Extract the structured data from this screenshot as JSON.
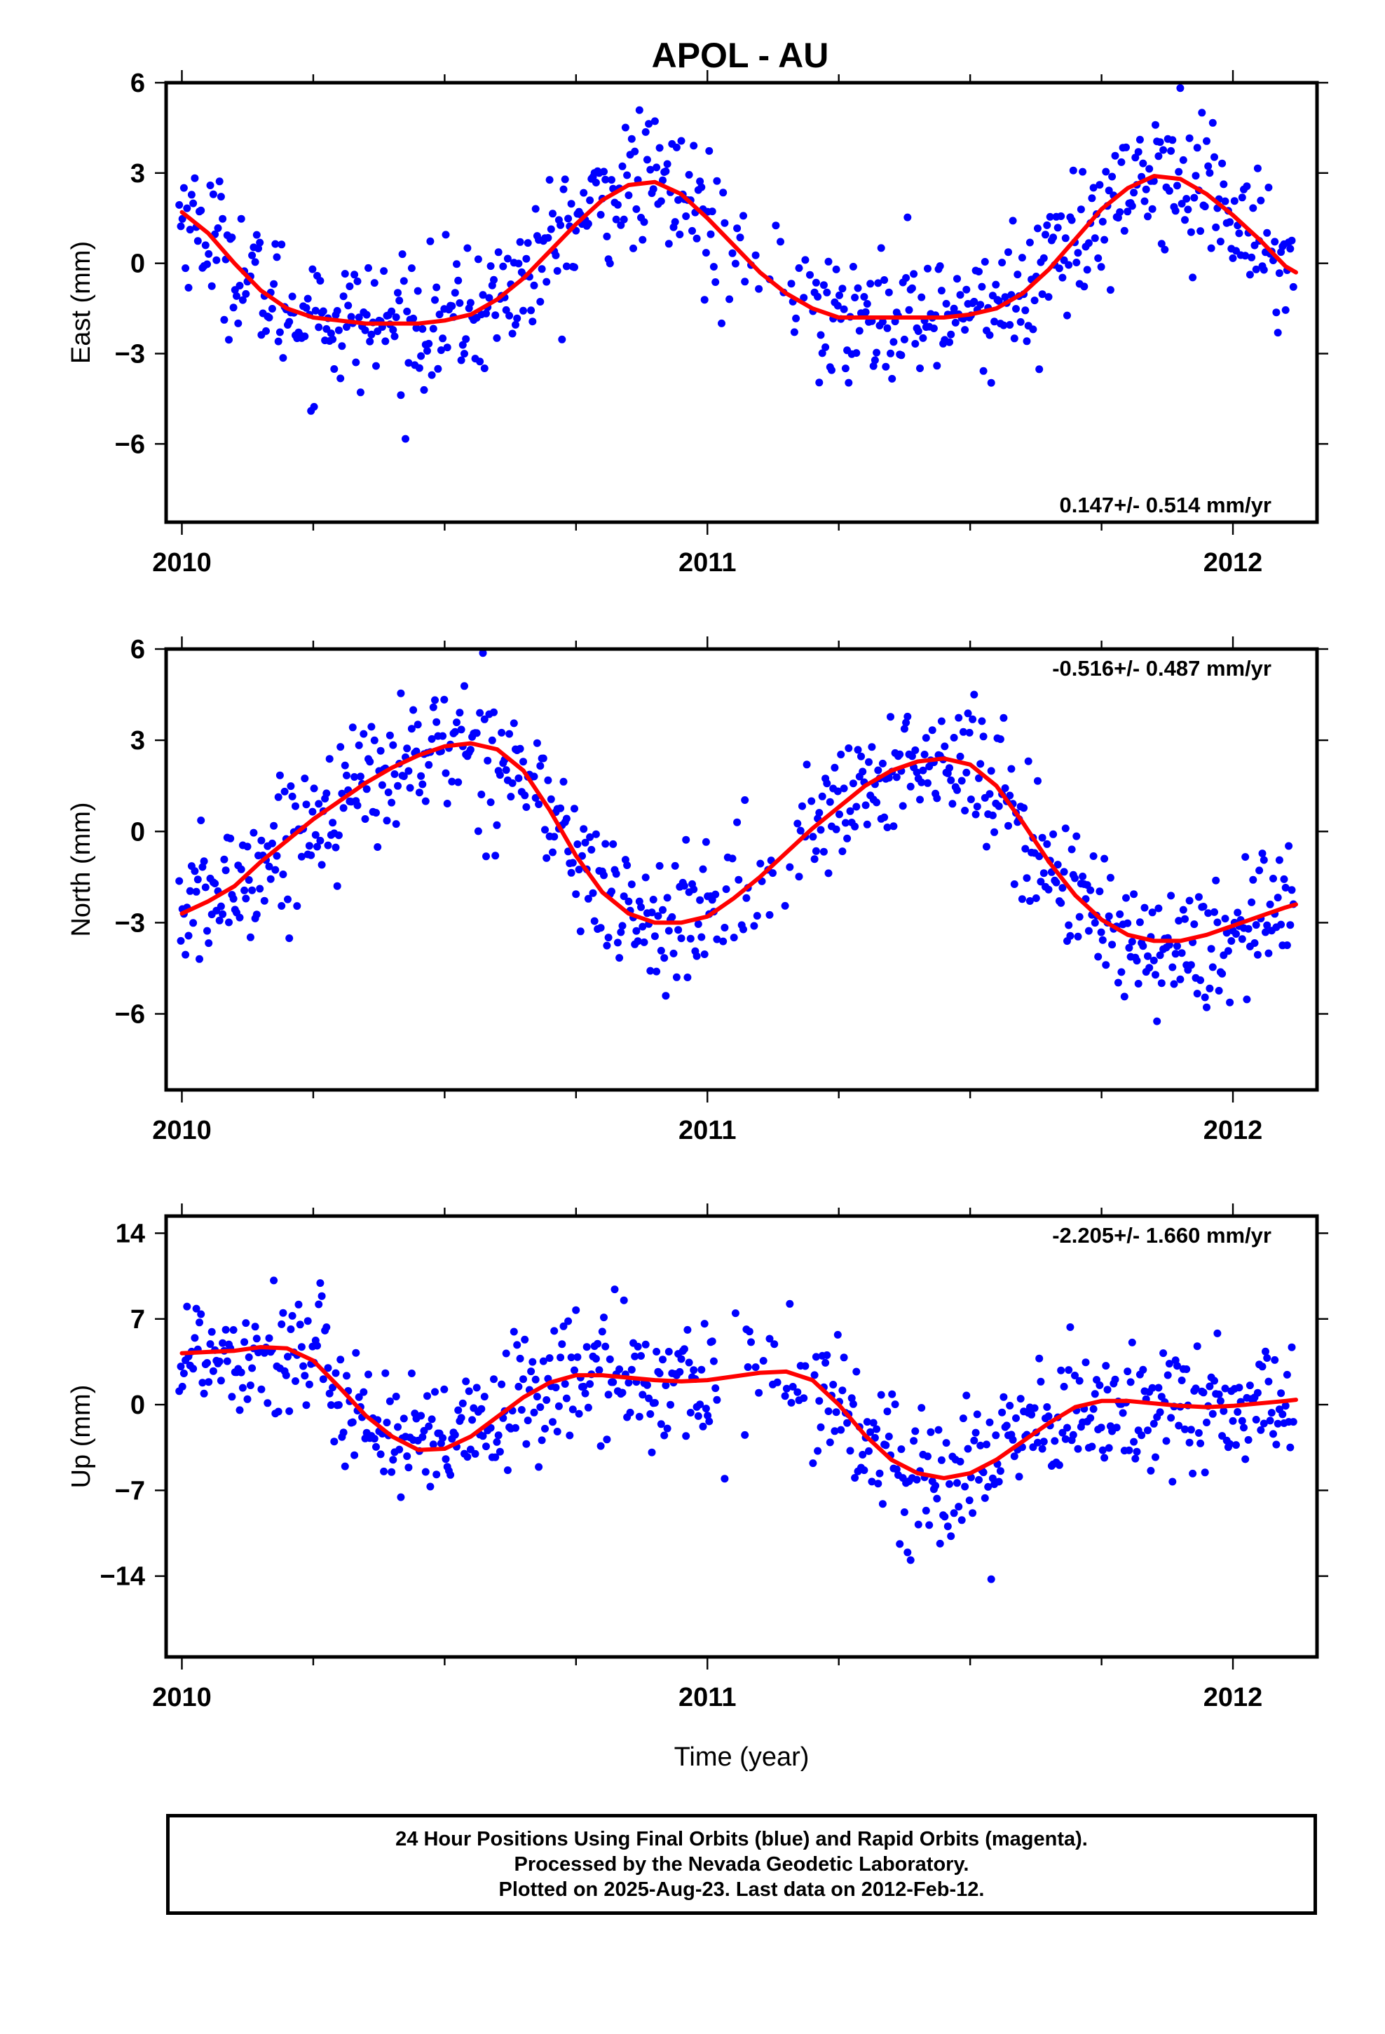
{
  "title": "APOL - AU",
  "footer": {
    "line1": "24 Hour Positions Using Final Orbits (blue) and Rapid Orbits (magenta).",
    "line2": "Processed by the Nevada Geodetic Laboratory.",
    "line3": "Plotted on 2025-Aug-23. Last data on 2012-Feb-12."
  },
  "colors": {
    "final_orbits": "#0000ff",
    "fit_curve": "#ff0000",
    "frame": "#000000"
  },
  "chart_data": [
    {
      "type": "scatter",
      "component": "east",
      "ylabel": "East (mm)",
      "xlabel": "",
      "xlim": [
        2009.97,
        2012.16
      ],
      "ylim": [
        -8.6,
        6.0
      ],
      "x_ticks": [
        2010,
        2011,
        2012
      ],
      "y_ticks": [
        -6,
        -3,
        0,
        3,
        6
      ],
      "rate_label": "0.147+/- 0.514 mm/yr",
      "rate_position": "bottom-right",
      "fit_curve": {
        "x": [
          2010.0,
          2010.05,
          2010.1,
          2010.15,
          2010.2,
          2010.25,
          2010.3,
          2010.35,
          2010.4,
          2010.45,
          2010.5,
          2010.55,
          2010.6,
          2010.65,
          2010.7,
          2010.75,
          2010.8,
          2010.85,
          2010.9,
          2010.95,
          2011.0,
          2011.05,
          2011.1,
          2011.15,
          2011.2,
          2011.25,
          2011.3,
          2011.35,
          2011.4,
          2011.45,
          2011.5,
          2011.55,
          2011.6,
          2011.65,
          2011.7,
          2011.75,
          2011.8,
          2011.85,
          2011.9,
          2011.95,
          2012.0,
          2012.05,
          2012.1,
          2012.12
        ],
        "y": [
          1.7,
          1.0,
          0.0,
          -0.9,
          -1.5,
          -1.8,
          -1.9,
          -2.0,
          -2.0,
          -2.0,
          -1.9,
          -1.7,
          -1.2,
          -0.5,
          0.4,
          1.3,
          2.1,
          2.6,
          2.7,
          2.3,
          1.5,
          0.6,
          -0.3,
          -1.0,
          -1.5,
          -1.8,
          -1.8,
          -1.8,
          -1.8,
          -1.8,
          -1.7,
          -1.5,
          -1.0,
          -0.2,
          0.8,
          1.8,
          2.5,
          2.9,
          2.8,
          2.3,
          1.6,
          0.8,
          -0.1,
          -0.3
        ]
      }
    },
    {
      "type": "scatter",
      "component": "north",
      "ylabel": "North (mm)",
      "xlabel": "",
      "xlim": [
        2009.97,
        2012.16
      ],
      "ylim": [
        -8.5,
        6.0
      ],
      "x_ticks": [
        2010,
        2011,
        2012
      ],
      "y_ticks": [
        -6,
        -3,
        0,
        3,
        6
      ],
      "rate_label": "-0.516+/- 0.487 mm/yr",
      "rate_position": "top-right",
      "fit_curve": {
        "x": [
          2010.0,
          2010.05,
          2010.1,
          2010.15,
          2010.2,
          2010.25,
          2010.3,
          2010.35,
          2010.4,
          2010.45,
          2010.5,
          2010.55,
          2010.6,
          2010.65,
          2010.7,
          2010.75,
          2010.8,
          2010.85,
          2010.9,
          2010.95,
          2011.0,
          2011.05,
          2011.1,
          2011.15,
          2011.2,
          2011.25,
          2011.3,
          2011.35,
          2011.4,
          2011.45,
          2011.5,
          2011.55,
          2011.6,
          2011.65,
          2011.7,
          2011.75,
          2011.8,
          2011.85,
          2011.9,
          2011.95,
          2012.0,
          2012.05,
          2012.1,
          2012.12
        ],
        "y": [
          -2.7,
          -2.3,
          -1.8,
          -1.0,
          -0.3,
          0.4,
          1.0,
          1.6,
          2.1,
          2.5,
          2.8,
          2.9,
          2.7,
          2.0,
          0.7,
          -0.8,
          -2.0,
          -2.7,
          -3.0,
          -3.0,
          -2.8,
          -2.2,
          -1.5,
          -0.7,
          0.1,
          0.8,
          1.5,
          2.0,
          2.3,
          2.4,
          2.2,
          1.5,
          0.3,
          -1.0,
          -2.1,
          -2.9,
          -3.4,
          -3.6,
          -3.6,
          -3.4,
          -3.1,
          -2.8,
          -2.5,
          -2.4
        ]
      }
    },
    {
      "type": "scatter",
      "component": "up",
      "ylabel": "Up (mm)",
      "xlabel": "Time (year)",
      "xlim": [
        2009.97,
        2012.16
      ],
      "ylim": [
        -20.6,
        15.4
      ],
      "x_ticks": [
        2010,
        2011,
        2012
      ],
      "y_ticks": [
        -14,
        -7,
        0,
        7,
        14
      ],
      "rate_label": "-2.205+/- 1.660 mm/yr",
      "rate_position": "top-right",
      "fit_curve": {
        "x": [
          2010.0,
          2010.05,
          2010.1,
          2010.15,
          2010.2,
          2010.25,
          2010.3,
          2010.35,
          2010.4,
          2010.45,
          2010.5,
          2010.55,
          2010.6,
          2010.65,
          2010.7,
          2010.75,
          2010.8,
          2010.85,
          2010.9,
          2010.95,
          2011.0,
          2011.05,
          2011.1,
          2011.15,
          2011.2,
          2011.25,
          2011.3,
          2011.35,
          2011.4,
          2011.45,
          2011.5,
          2011.55,
          2011.6,
          2011.65,
          2011.7,
          2011.75,
          2011.8,
          2011.85,
          2011.9,
          2011.95,
          2012.0,
          2012.05,
          2012.1,
          2012.12
        ],
        "y": [
          4.2,
          4.3,
          4.4,
          4.7,
          4.6,
          3.6,
          1.4,
          -0.9,
          -2.6,
          -3.7,
          -3.6,
          -2.6,
          -1.0,
          0.6,
          1.8,
          2.4,
          2.4,
          2.2,
          2.0,
          1.9,
          2.0,
          2.3,
          2.6,
          2.7,
          2.0,
          0.0,
          -2.5,
          -4.5,
          -5.6,
          -6.0,
          -5.6,
          -4.5,
          -3.0,
          -1.5,
          -0.2,
          0.3,
          0.3,
          0.1,
          -0.1,
          -0.2,
          -0.1,
          0.1,
          0.3,
          0.4
        ]
      }
    }
  ]
}
